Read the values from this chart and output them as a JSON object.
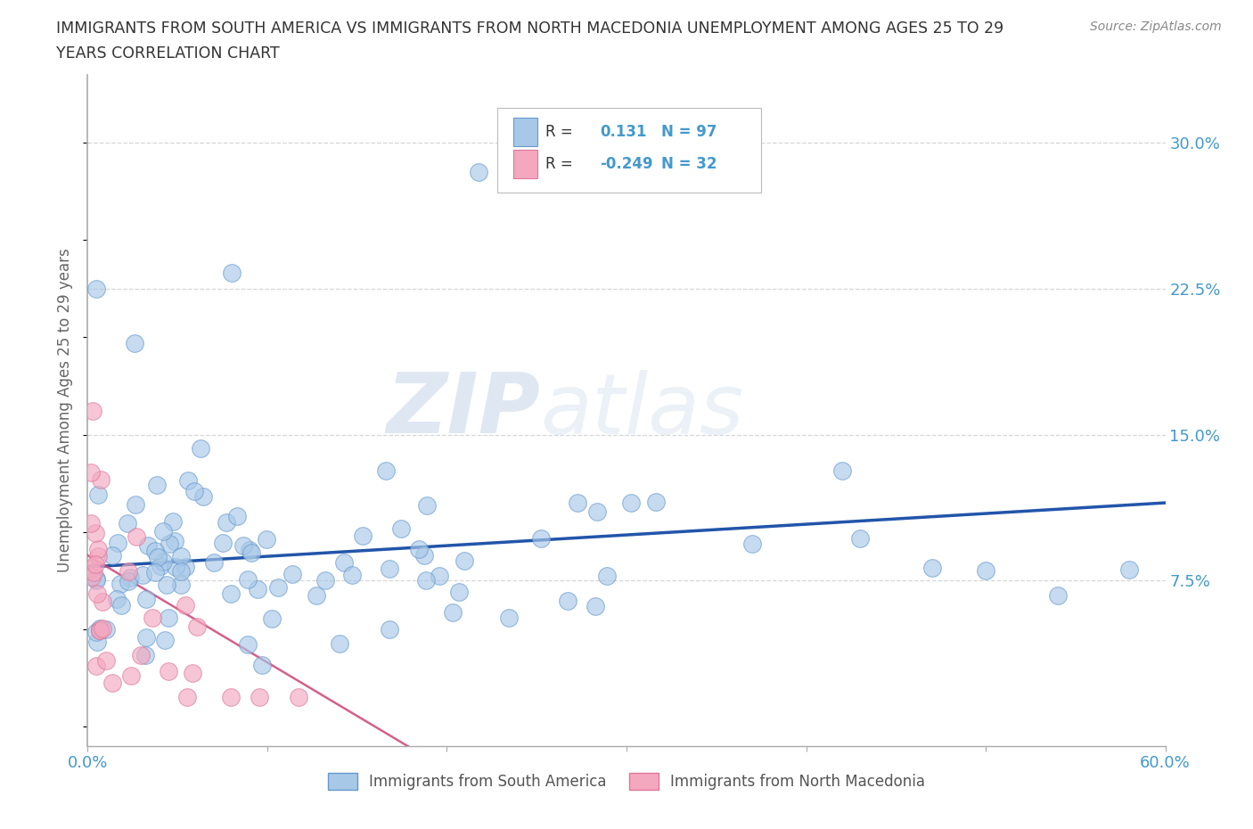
{
  "title_line1": "IMMIGRANTS FROM SOUTH AMERICA VS IMMIGRANTS FROM NORTH MACEDONIA UNEMPLOYMENT AMONG AGES 25 TO 29",
  "title_line2": "YEARS CORRELATION CHART",
  "source_text": "Source: ZipAtlas.com",
  "watermark_zip": "ZIP",
  "watermark_atlas": "atlas",
  "ylabel": "Unemployment Among Ages 25 to 29 years",
  "xlim": [
    0,
    0.6
  ],
  "ylim": [
    -0.01,
    0.335
  ],
  "ytick_positions": [
    0.075,
    0.15,
    0.225,
    0.3
  ],
  "ytick_labels": [
    "7.5%",
    "15.0%",
    "22.5%",
    "30.0%"
  ],
  "r_south_america": 0.131,
  "n_south_america": 97,
  "r_north_macedonia": -0.249,
  "n_north_macedonia": 32,
  "color_south_america": "#a8c8e8",
  "color_north_macedonia": "#f4a8c0",
  "edge_sa": "#6699cc",
  "edge_nm": "#dd7799",
  "trendline_color_sa": "#2255aa",
  "trendline_color_nm": "#cc4477",
  "legend_label_sa": "Immigrants from South America",
  "legend_label_nm": "Immigrants from North Macedonia",
  "grid_color": "#cccccc",
  "background_color": "#ffffff",
  "title_color": "#333333",
  "axis_label_color": "#666666",
  "tick_color": "#4499cc"
}
